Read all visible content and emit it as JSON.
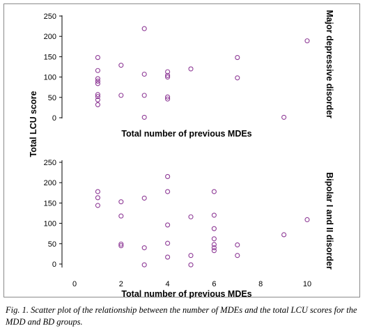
{
  "caption": "Fig. 1. Scatter plot of the relationship between the number of MDEs and the total LCU scores for the MDD and BD groups.",
  "shared_ylabel": "Total LCU score",
  "marker_color": "#8e3a96",
  "chart_data": [
    {
      "type": "scatter",
      "title": "Major depressive disorder",
      "xlabel": "Total number of previous MDEs",
      "ylabel": "Total LCU score",
      "xlim": [
        0,
        10
      ],
      "ylim": [
        0,
        250
      ],
      "y_ticks": [
        0,
        50,
        100,
        150,
        200,
        250
      ],
      "x_ticks": [],
      "grid": false,
      "points": [
        {
          "x": 1,
          "y": 148
        },
        {
          "x": 1,
          "y": 116
        },
        {
          "x": 1,
          "y": 96
        },
        {
          "x": 1,
          "y": 90
        },
        {
          "x": 1,
          "y": 84
        },
        {
          "x": 1,
          "y": 57
        },
        {
          "x": 1,
          "y": 52
        },
        {
          "x": 1,
          "y": 44
        },
        {
          "x": 1,
          "y": 32
        },
        {
          "x": 2,
          "y": 129
        },
        {
          "x": 2,
          "y": 55
        },
        {
          "x": 3,
          "y": 219
        },
        {
          "x": 3,
          "y": 107
        },
        {
          "x": 3,
          "y": 55
        },
        {
          "x": 3,
          "y": 1
        },
        {
          "x": 4,
          "y": 113
        },
        {
          "x": 4,
          "y": 104
        },
        {
          "x": 4,
          "y": 100
        },
        {
          "x": 4,
          "y": 51
        },
        {
          "x": 4,
          "y": 46
        },
        {
          "x": 5,
          "y": 120
        },
        {
          "x": 7,
          "y": 148
        },
        {
          "x": 7,
          "y": 98
        },
        {
          "x": 9,
          "y": 1
        },
        {
          "x": 10,
          "y": 189
        }
      ]
    },
    {
      "type": "scatter",
      "title": "Bipolar I and II disorder",
      "xlabel": "Total number of previous MDEs",
      "ylabel": "Total LCU score",
      "xlim": [
        0,
        10
      ],
      "ylim": [
        0,
        250
      ],
      "y_ticks": [
        0,
        50,
        100,
        150,
        200,
        250
      ],
      "x_ticks": [
        0,
        2,
        4,
        6,
        8,
        10
      ],
      "grid": false,
      "points": [
        {
          "x": 1,
          "y": 178
        },
        {
          "x": 1,
          "y": 163
        },
        {
          "x": 1,
          "y": 144
        },
        {
          "x": 2,
          "y": 153
        },
        {
          "x": 2,
          "y": 118
        },
        {
          "x": 2,
          "y": 49
        },
        {
          "x": 2,
          "y": 45
        },
        {
          "x": 3,
          "y": 162
        },
        {
          "x": 3,
          "y": 40
        },
        {
          "x": 3,
          "y": -2
        },
        {
          "x": 4,
          "y": 215
        },
        {
          "x": 4,
          "y": 178
        },
        {
          "x": 4,
          "y": 96
        },
        {
          "x": 4,
          "y": 51
        },
        {
          "x": 4,
          "y": 17
        },
        {
          "x": 5,
          "y": 116
        },
        {
          "x": 5,
          "y": 21
        },
        {
          "x": 5,
          "y": -2
        },
        {
          "x": 6,
          "y": 178
        },
        {
          "x": 6,
          "y": 120
        },
        {
          "x": 6,
          "y": 87
        },
        {
          "x": 6,
          "y": 62
        },
        {
          "x": 6,
          "y": 48
        },
        {
          "x": 6,
          "y": 40
        },
        {
          "x": 6,
          "y": 33
        },
        {
          "x": 7,
          "y": 47
        },
        {
          "x": 7,
          "y": 21
        },
        {
          "x": 9,
          "y": 72
        },
        {
          "x": 10,
          "y": 109
        }
      ]
    }
  ]
}
